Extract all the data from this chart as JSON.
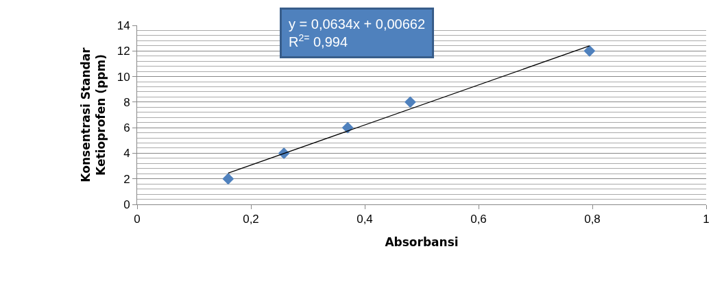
{
  "chart_data": {
    "type": "scatter",
    "xlabel": "Absorbansi",
    "ylabel": "Konsentrasi Standar Ketioprofen (ppm)",
    "series": [
      {
        "color": "#4f81bd",
        "marker": "diamond",
        "x": [
          0.16,
          0.258,
          0.37,
          0.48,
          0.795
        ],
        "values": [
          2,
          4,
          6,
          8,
          12
        ]
      },
      {
        "type": "line",
        "color": "#000000",
        "marker": "none",
        "x": [
          0.16,
          0.795
        ],
        "values": [
          2.45,
          12.4
        ]
      }
    ],
    "annotations": [
      "y = 0,0634x + 0,00662",
      "R$^{2=}$ 0,994"
    ],
    "xlim": [
      0,
      1
    ],
    "xticks": [
      0,
      {
        "value": 0.2,
        "label": "0,2"
      },
      {
        "value": 0.4,
        "label": "0,4"
      },
      {
        "value": 0.6,
        "label": "0,6"
      },
      {
        "value": 0.8,
        "label": "0,8"
      },
      1
    ],
    "ylim": [
      0,
      14
    ],
    "yticks": [
      0,
      2,
      4,
      6,
      8,
      10,
      12,
      14
    ],
    "grid": "y"
  }
}
